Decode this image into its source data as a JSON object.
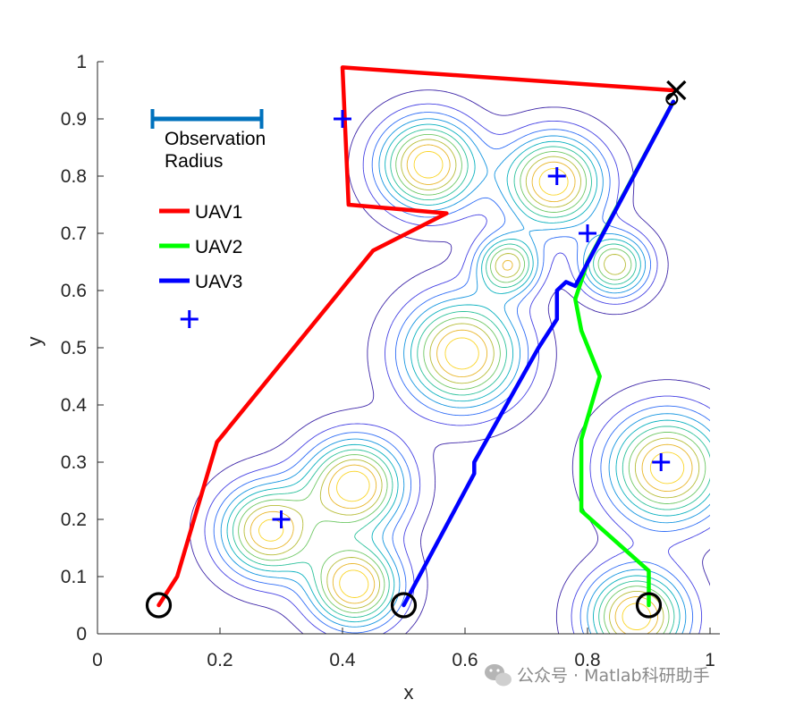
{
  "chart_data": {
    "type": "line",
    "xlabel": "x",
    "ylabel": "y",
    "xlim": [
      0,
      1
    ],
    "ylim": [
      0,
      1
    ],
    "xticks": [
      "0",
      "0.2",
      "0.4",
      "0.6",
      "0.8",
      "1"
    ],
    "yticks": [
      "0",
      "0.1",
      "0.2",
      "0.3",
      "0.4",
      "0.5",
      "0.6",
      "0.7",
      "0.8",
      "0.9",
      "1"
    ],
    "grid": false,
    "legend": {
      "placement": "top-left",
      "observation_label_line1": "Observation",
      "observation_label_line2": "Radius",
      "observation_radius_segment": [
        [
          0.1,
          0.9
        ],
        [
          0.3,
          0.9
        ]
      ],
      "observation_color": "#0072BD",
      "entries": [
        {
          "name": "UAV1",
          "color": "#FF0000"
        },
        {
          "name": "UAV2",
          "color": "#00FF00"
        },
        {
          "name": "UAV3",
          "color": "#0000FF"
        }
      ]
    },
    "series": [
      {
        "name": "UAV1",
        "color": "#FF0000",
        "x": [
          0.1,
          0.13,
          0.195,
          0.45,
          0.57,
          0.41,
          0.4,
          0.94
        ],
        "y": [
          0.05,
          0.1,
          0.335,
          0.67,
          0.735,
          0.75,
          0.99,
          0.95
        ]
      },
      {
        "name": "UAV2",
        "color": "#00FF00",
        "x": [
          0.9,
          0.9,
          0.79,
          0.79,
          0.82,
          0.79,
          0.78,
          0.8,
          0.94
        ],
        "y": [
          0.05,
          0.11,
          0.215,
          0.34,
          0.45,
          0.53,
          0.585,
          0.65,
          0.93
        ]
      },
      {
        "name": "UAV3",
        "color": "#0000FF",
        "x": [
          0.5,
          0.615,
          0.615,
          0.72,
          0.75,
          0.75,
          0.765,
          0.78,
          0.94
        ],
        "y": [
          0.05,
          0.28,
          0.3,
          0.5,
          0.55,
          0.6,
          0.615,
          0.608,
          0.93
        ]
      }
    ],
    "start_points": {
      "marker": "circle",
      "color": "#000000",
      "x": [
        0.1,
        0.5,
        0.9
      ],
      "y": [
        0.05,
        0.05,
        0.05
      ]
    },
    "goal_point": {
      "marker": "x",
      "color": "#000000",
      "x": 0.945,
      "y": 0.95
    },
    "targets": {
      "marker": "plus",
      "color": "#0000FF",
      "x": [
        0.4,
        0.75,
        0.8,
        0.15,
        0.3,
        0.92
      ],
      "y": [
        0.9,
        0.8,
        0.7,
        0.55,
        0.2,
        0.3
      ]
    },
    "contour": {
      "type": "contour",
      "levels": 10,
      "colormap": [
        "#3E26A8",
        "#4743E4",
        "#2F6DF6",
        "#1495E0",
        "#09B1BE",
        "#2CC19A",
        "#6FC865",
        "#B7BD38",
        "#E9B62A",
        "#FAD528"
      ],
      "peaks": [
        {
          "x": 0.54,
          "y": 0.82,
          "sigma": 0.055,
          "amp": 1.0
        },
        {
          "x": 0.745,
          "y": 0.79,
          "sigma": 0.055,
          "amp": 1.0
        },
        {
          "x": 0.67,
          "y": 0.645,
          "sigma": 0.035,
          "amp": 0.8
        },
        {
          "x": 0.845,
          "y": 0.645,
          "sigma": 0.038,
          "amp": 0.8
        },
        {
          "x": 0.595,
          "y": 0.49,
          "sigma": 0.065,
          "amp": 1.0
        },
        {
          "x": 0.42,
          "y": 0.26,
          "sigma": 0.055,
          "amp": 1.0
        },
        {
          "x": 0.28,
          "y": 0.18,
          "sigma": 0.055,
          "amp": 0.95
        },
        {
          "x": 0.42,
          "y": 0.085,
          "sigma": 0.05,
          "amp": 1.0
        },
        {
          "x": 0.93,
          "y": 0.29,
          "sigma": 0.065,
          "amp": 1.0
        },
        {
          "x": 0.88,
          "y": 0.03,
          "sigma": 0.055,
          "amp": 1.0
        }
      ]
    }
  },
  "watermark": {
    "text": "公众号 · Matlab科研助手"
  }
}
